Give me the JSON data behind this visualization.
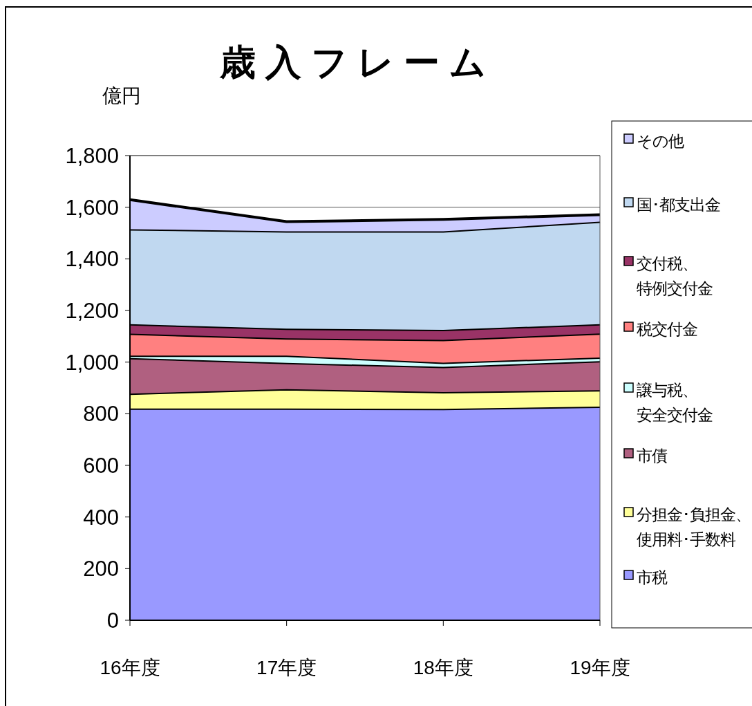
{
  "chart_data": {
    "type": "area",
    "stacked": true,
    "title": "歳入フレーム",
    "ylabel": "億円",
    "categories": [
      "16年度",
      "17年度",
      "18年度",
      "19年度"
    ],
    "ylim": [
      0,
      1800
    ],
    "yticks": [
      {
        "value": 0,
        "label": "0"
      },
      {
        "value": 200,
        "label": "200"
      },
      {
        "value": 400,
        "label": "400"
      },
      {
        "value": 600,
        "label": "600"
      },
      {
        "value": 800,
        "label": "800"
      },
      {
        "value": 1000,
        "label": "1,000"
      },
      {
        "value": 1200,
        "label": "1,200"
      },
      {
        "value": 1400,
        "label": "1,400"
      },
      {
        "value": 1600,
        "label": "1,600"
      },
      {
        "value": 1800,
        "label": "1,800"
      }
    ],
    "grid": "y",
    "legend": "right",
    "series": [
      {
        "name": "市税",
        "color": "#9999ff",
        "values": [
          820,
          820,
          819,
          828
        ]
      },
      {
        "name": "分担金･負担金、使用料･手数料",
        "color": "#ffff99",
        "values": [
          58,
          75,
          65,
          63
        ]
      },
      {
        "name": "市債",
        "color": "#b06080",
        "values": [
          138,
          102,
          98,
          113
        ]
      },
      {
        "name": "譲与税、安全交付金",
        "color": "#ccffff",
        "values": [
          9,
          28,
          16,
          14
        ]
      },
      {
        "name": "税交付金",
        "color": "#ff8080",
        "values": [
          85,
          67,
          88,
          93
        ]
      },
      {
        "name": "交付税、特例交付金",
        "color": "#993366",
        "values": [
          37,
          38,
          39,
          36
        ]
      },
      {
        "name": "国･都支出金",
        "color": "#c0d8f0",
        "values": [
          368,
          377,
          382,
          397
        ]
      },
      {
        "name": "その他",
        "color": "#ccccff",
        "values": [
          114,
          37,
          46,
          27
        ]
      }
    ]
  }
}
